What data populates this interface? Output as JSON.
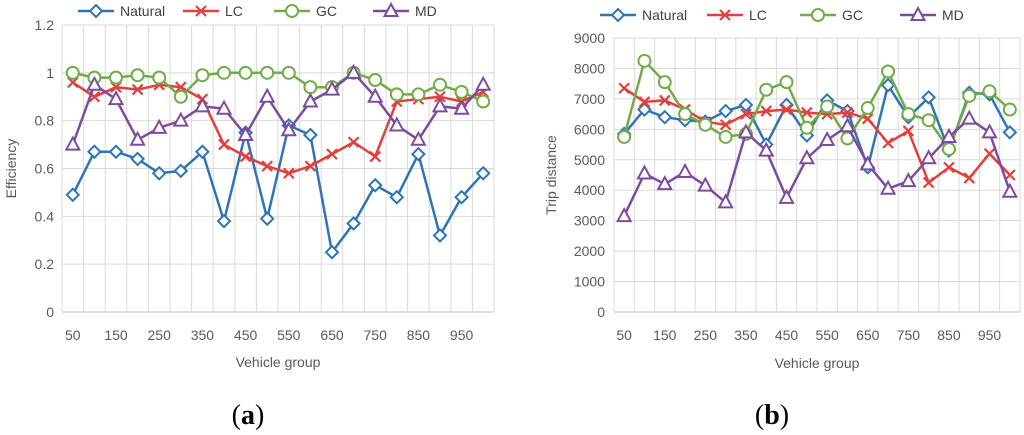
{
  "colors": {
    "Natural": "#2e75b6",
    "LC": "#e2403c",
    "GC": "#70ad47",
    "MD": "#7d4c9e"
  },
  "chart_data": [
    {
      "type": "line",
      "panel_label": "a",
      "xlabel": "Vehicle group",
      "ylabel": "Efficiency",
      "ylim": [
        0,
        1.2
      ],
      "yticks": [
        "0",
        "0.2",
        "0.4",
        "0.6",
        "0.8",
        "1",
        "1.2"
      ],
      "legend_position": "top",
      "x": [
        50,
        100,
        150,
        200,
        250,
        300,
        350,
        400,
        450,
        500,
        550,
        600,
        650,
        700,
        750,
        800,
        850,
        900,
        950,
        1000
      ],
      "x_tick_labels": [
        "50",
        "150",
        "250",
        "350",
        "450",
        "550",
        "650",
        "750",
        "850",
        "950"
      ],
      "series": [
        {
          "name": "Natural",
          "marker": "diamond",
          "values": [
            0.49,
            0.67,
            0.67,
            0.64,
            0.58,
            0.59,
            0.67,
            0.38,
            0.75,
            0.39,
            0.78,
            0.74,
            0.25,
            0.37,
            0.53,
            0.48,
            0.66,
            0.32,
            0.48,
            0.58
          ]
        },
        {
          "name": "LC",
          "marker": "x",
          "values": [
            0.96,
            0.9,
            0.94,
            0.93,
            0.95,
            0.94,
            0.89,
            0.7,
            0.65,
            0.61,
            0.58,
            0.61,
            0.66,
            0.71,
            0.65,
            0.88,
            0.89,
            0.9,
            0.88,
            0.92
          ]
        },
        {
          "name": "GC",
          "marker": "circle",
          "values": [
            1.0,
            0.98,
            0.98,
            0.99,
            0.98,
            0.9,
            0.99,
            1.0,
            1.0,
            1.0,
            1.0,
            0.94,
            0.94,
            1.0,
            0.97,
            0.91,
            0.91,
            0.95,
            0.92,
            0.88
          ]
        },
        {
          "name": "MD",
          "marker": "triangle",
          "values": [
            0.7,
            0.95,
            0.89,
            0.72,
            0.77,
            0.8,
            0.86,
            0.85,
            0.74,
            0.9,
            0.76,
            0.88,
            0.93,
            1.0,
            0.9,
            0.78,
            0.72,
            0.86,
            0.85,
            0.95
          ]
        }
      ]
    },
    {
      "type": "line",
      "panel_label": "b",
      "xlabel": "Vehicle group",
      "ylabel": "Trip distance",
      "ylim": [
        0,
        9000
      ],
      "yticks": [
        "0",
        "1000",
        "2000",
        "3000",
        "4000",
        "5000",
        "6000",
        "7000",
        "8000",
        "9000"
      ],
      "legend_position": "top",
      "x": [
        50,
        100,
        150,
        200,
        250,
        300,
        350,
        400,
        450,
        500,
        550,
        600,
        650,
        700,
        750,
        800,
        850,
        900,
        950,
        1000
      ],
      "x_tick_labels": [
        "50",
        "150",
        "250",
        "350",
        "450",
        "550",
        "650",
        "750",
        "850",
        "950"
      ],
      "series": [
        {
          "name": "Natural",
          "marker": "diamond",
          "values": [
            5850,
            6650,
            6400,
            6300,
            6250,
            6600,
            6800,
            5500,
            6800,
            5800,
            6950,
            6600,
            4750,
            7450,
            6400,
            7050,
            5300,
            7200,
            7150,
            5900
          ]
        },
        {
          "name": "LC",
          "marker": "x",
          "values": [
            7350,
            6900,
            6950,
            6650,
            6250,
            6150,
            6500,
            6600,
            6650,
            6550,
            6500,
            6550,
            6350,
            5550,
            5950,
            4250,
            4750,
            4400,
            5200,
            4500
          ]
        },
        {
          "name": "GC",
          "marker": "circle",
          "values": [
            5750,
            8250,
            7550,
            6500,
            6150,
            5750,
            5850,
            7300,
            7550,
            6050,
            6750,
            5700,
            6700,
            7900,
            6500,
            6300,
            5350,
            7100,
            7250,
            6650
          ]
        },
        {
          "name": "MD",
          "marker": "triangle",
          "values": [
            3150,
            4550,
            4200,
            4600,
            4150,
            3600,
            5900,
            5300,
            3750,
            5050,
            5650,
            6100,
            4850,
            4050,
            4300,
            5050,
            5750,
            6350,
            5900,
            3950
          ]
        }
      ]
    }
  ]
}
